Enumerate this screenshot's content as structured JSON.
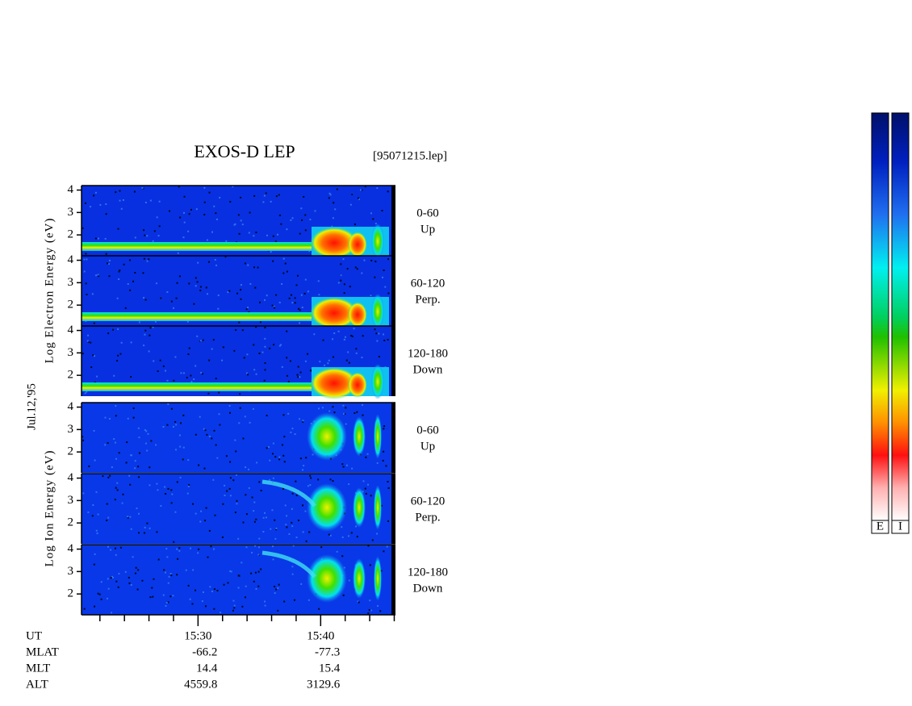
{
  "chart_data": {
    "type": "spectrogram",
    "title": "EXOS-D LEP",
    "file": "[95071215.lep]",
    "date": "Jul.12,'95",
    "groups": [
      "Log Electron Energy (eV)",
      "Log Ion Energy (eV)"
    ],
    "panels": [
      {
        "label": [
          "0-60",
          "Up"
        ]
      },
      {
        "label": [
          "60-120",
          "Perp."
        ]
      },
      {
        "label": [
          "120-180",
          "Down"
        ]
      },
      {
        "label": [
          "0-60",
          "Up"
        ]
      },
      {
        "label": [
          "60-120",
          "Perp."
        ]
      },
      {
        "label": [
          "120-180",
          "Down"
        ]
      }
    ],
    "ylim": [
      1.07,
      4.2
    ],
    "yticks": [
      2,
      3,
      4
    ],
    "xlim": [
      920.5,
      946.1
    ],
    "xticks": [
      {
        "value": 930,
        "label": "15:30"
      },
      {
        "value": 940,
        "label": "15:40"
      }
    ],
    "xminor": [
      922,
      924,
      926,
      928,
      932,
      934,
      936,
      938,
      942,
      944,
      946
    ],
    "ephemeris": {
      "names": [
        "UT",
        "MLAT",
        "MLT",
        "ALT"
      ],
      "rows": [
        [
          -66.2,
          -77.3
        ],
        [
          14.4,
          15.4
        ],
        [
          4559.8,
          3129.6
        ]
      ]
    },
    "colorbars": [
      "E",
      "I"
    ]
  }
}
